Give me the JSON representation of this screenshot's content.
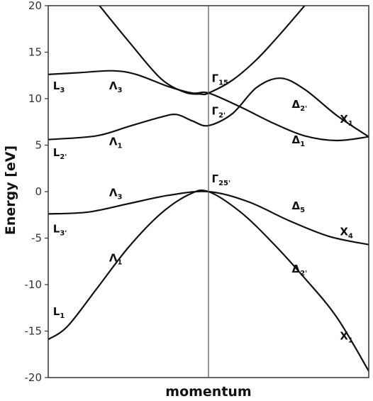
{
  "chart_data": {
    "type": "line",
    "xlabel": "momentum",
    "ylabel": "Energy [eV]",
    "ylim": [
      -20,
      20
    ],
    "y_ticks": [
      "20",
      "15",
      "10",
      "5",
      "0",
      "-5",
      "-10",
      "-15",
      "-20"
    ],
    "x_points": {
      "L": 0,
      "Gamma": 1,
      "X": 2
    },
    "grid": false,
    "series": [
      {
        "values": [
          [
            0,
            -15.9
          ],
          [
            0.12,
            -14.5
          ],
          [
            0.3,
            -10.5
          ],
          [
            0.5,
            -6
          ],
          [
            0.7,
            -2.4
          ],
          [
            0.88,
            -0.3
          ],
          [
            1,
            0
          ],
          [
            1.2,
            -2.2
          ],
          [
            1.4,
            -5.5
          ],
          [
            1.6,
            -9.3
          ],
          [
            1.8,
            -13.5
          ],
          [
            2,
            -19.3
          ]
        ]
      },
      {
        "values": [
          [
            0,
            -2.4
          ],
          [
            0.25,
            -2.2
          ],
          [
            0.5,
            -1.3
          ],
          [
            0.75,
            -0.4
          ],
          [
            1,
            0
          ],
          [
            1.25,
            -1.1
          ],
          [
            1.5,
            -3.1
          ],
          [
            1.75,
            -4.8
          ],
          [
            2,
            -5.7
          ]
        ]
      },
      {
        "values": [
          [
            0,
            5.6
          ],
          [
            0.3,
            6
          ],
          [
            0.5,
            7
          ],
          [
            0.7,
            8
          ],
          [
            0.8,
            8.3
          ],
          [
            0.9,
            7.6
          ],
          [
            1,
            7.1
          ],
          [
            1.15,
            8.4
          ],
          [
            1.3,
            11.2
          ],
          [
            1.45,
            12.2
          ],
          [
            1.6,
            11
          ],
          [
            1.8,
            8.2
          ],
          [
            2,
            5.9
          ]
        ]
      },
      {
        "values": [
          [
            0,
            12.6
          ],
          [
            0.2,
            12.8
          ],
          [
            0.4,
            13
          ],
          [
            0.55,
            12.6
          ],
          [
            0.75,
            11.3
          ],
          [
            0.9,
            10.6
          ],
          [
            1,
            10.6
          ],
          [
            1.2,
            9.1
          ],
          [
            1.4,
            7.4
          ],
          [
            1.6,
            6
          ],
          [
            1.8,
            5.5
          ],
          [
            2,
            5.9
          ]
        ]
      },
      {
        "values": [
          [
            0.32,
            20
          ],
          [
            0.5,
            16.2
          ],
          [
            0.7,
            12.2
          ],
          [
            0.85,
            10.7
          ],
          [
            0.95,
            10.5
          ],
          [
            1,
            10.6
          ],
          [
            1.15,
            12
          ],
          [
            1.3,
            14.2
          ],
          [
            1.45,
            17
          ],
          [
            1.6,
            20
          ]
        ]
      }
    ],
    "band_labels": [
      {
        "text": "L",
        "sub": "3",
        "x": 0.03,
        "y": 11
      },
      {
        "text": "Λ",
        "sub": "3",
        "x": 0.38,
        "y": 11
      },
      {
        "text": "L",
        "sub": "2'",
        "x": 0.03,
        "y": 3.8
      },
      {
        "text": "Λ",
        "sub": "1",
        "x": 0.38,
        "y": 5
      },
      {
        "text": "Γ",
        "sub": "15",
        "x": 1.02,
        "y": 11.8
      },
      {
        "text": "Γ",
        "sub": "2'",
        "x": 1.02,
        "y": 8.3
      },
      {
        "text": "Δ",
        "sub": "2'",
        "x": 1.52,
        "y": 9
      },
      {
        "text": "X",
        "sub": "1",
        "x": 1.82,
        "y": 7.4
      },
      {
        "text": "Δ",
        "sub": "1",
        "x": 1.52,
        "y": 5.2
      },
      {
        "text": "Γ",
        "sub": "25'",
        "x": 1.02,
        "y": 1
      },
      {
        "text": "Λ",
        "sub": "3",
        "x": 0.38,
        "y": -0.5
      },
      {
        "text": "Δ",
        "sub": "5",
        "x": 1.52,
        "y": -1.9
      },
      {
        "text": "L",
        "sub": "3'",
        "x": 0.03,
        "y": -4.4
      },
      {
        "text": "X",
        "sub": "4",
        "x": 1.82,
        "y": -4.7
      },
      {
        "text": "Λ",
        "sub": "1",
        "x": 0.38,
        "y": -7.5
      },
      {
        "text": "Δ",
        "sub": "2'",
        "x": 1.52,
        "y": -8.7
      },
      {
        "text": "L",
        "sub": "1",
        "x": 0.03,
        "y": -13.3
      },
      {
        "text": "X",
        "sub": "1",
        "x": 1.82,
        "y": -15.9
      }
    ]
  }
}
